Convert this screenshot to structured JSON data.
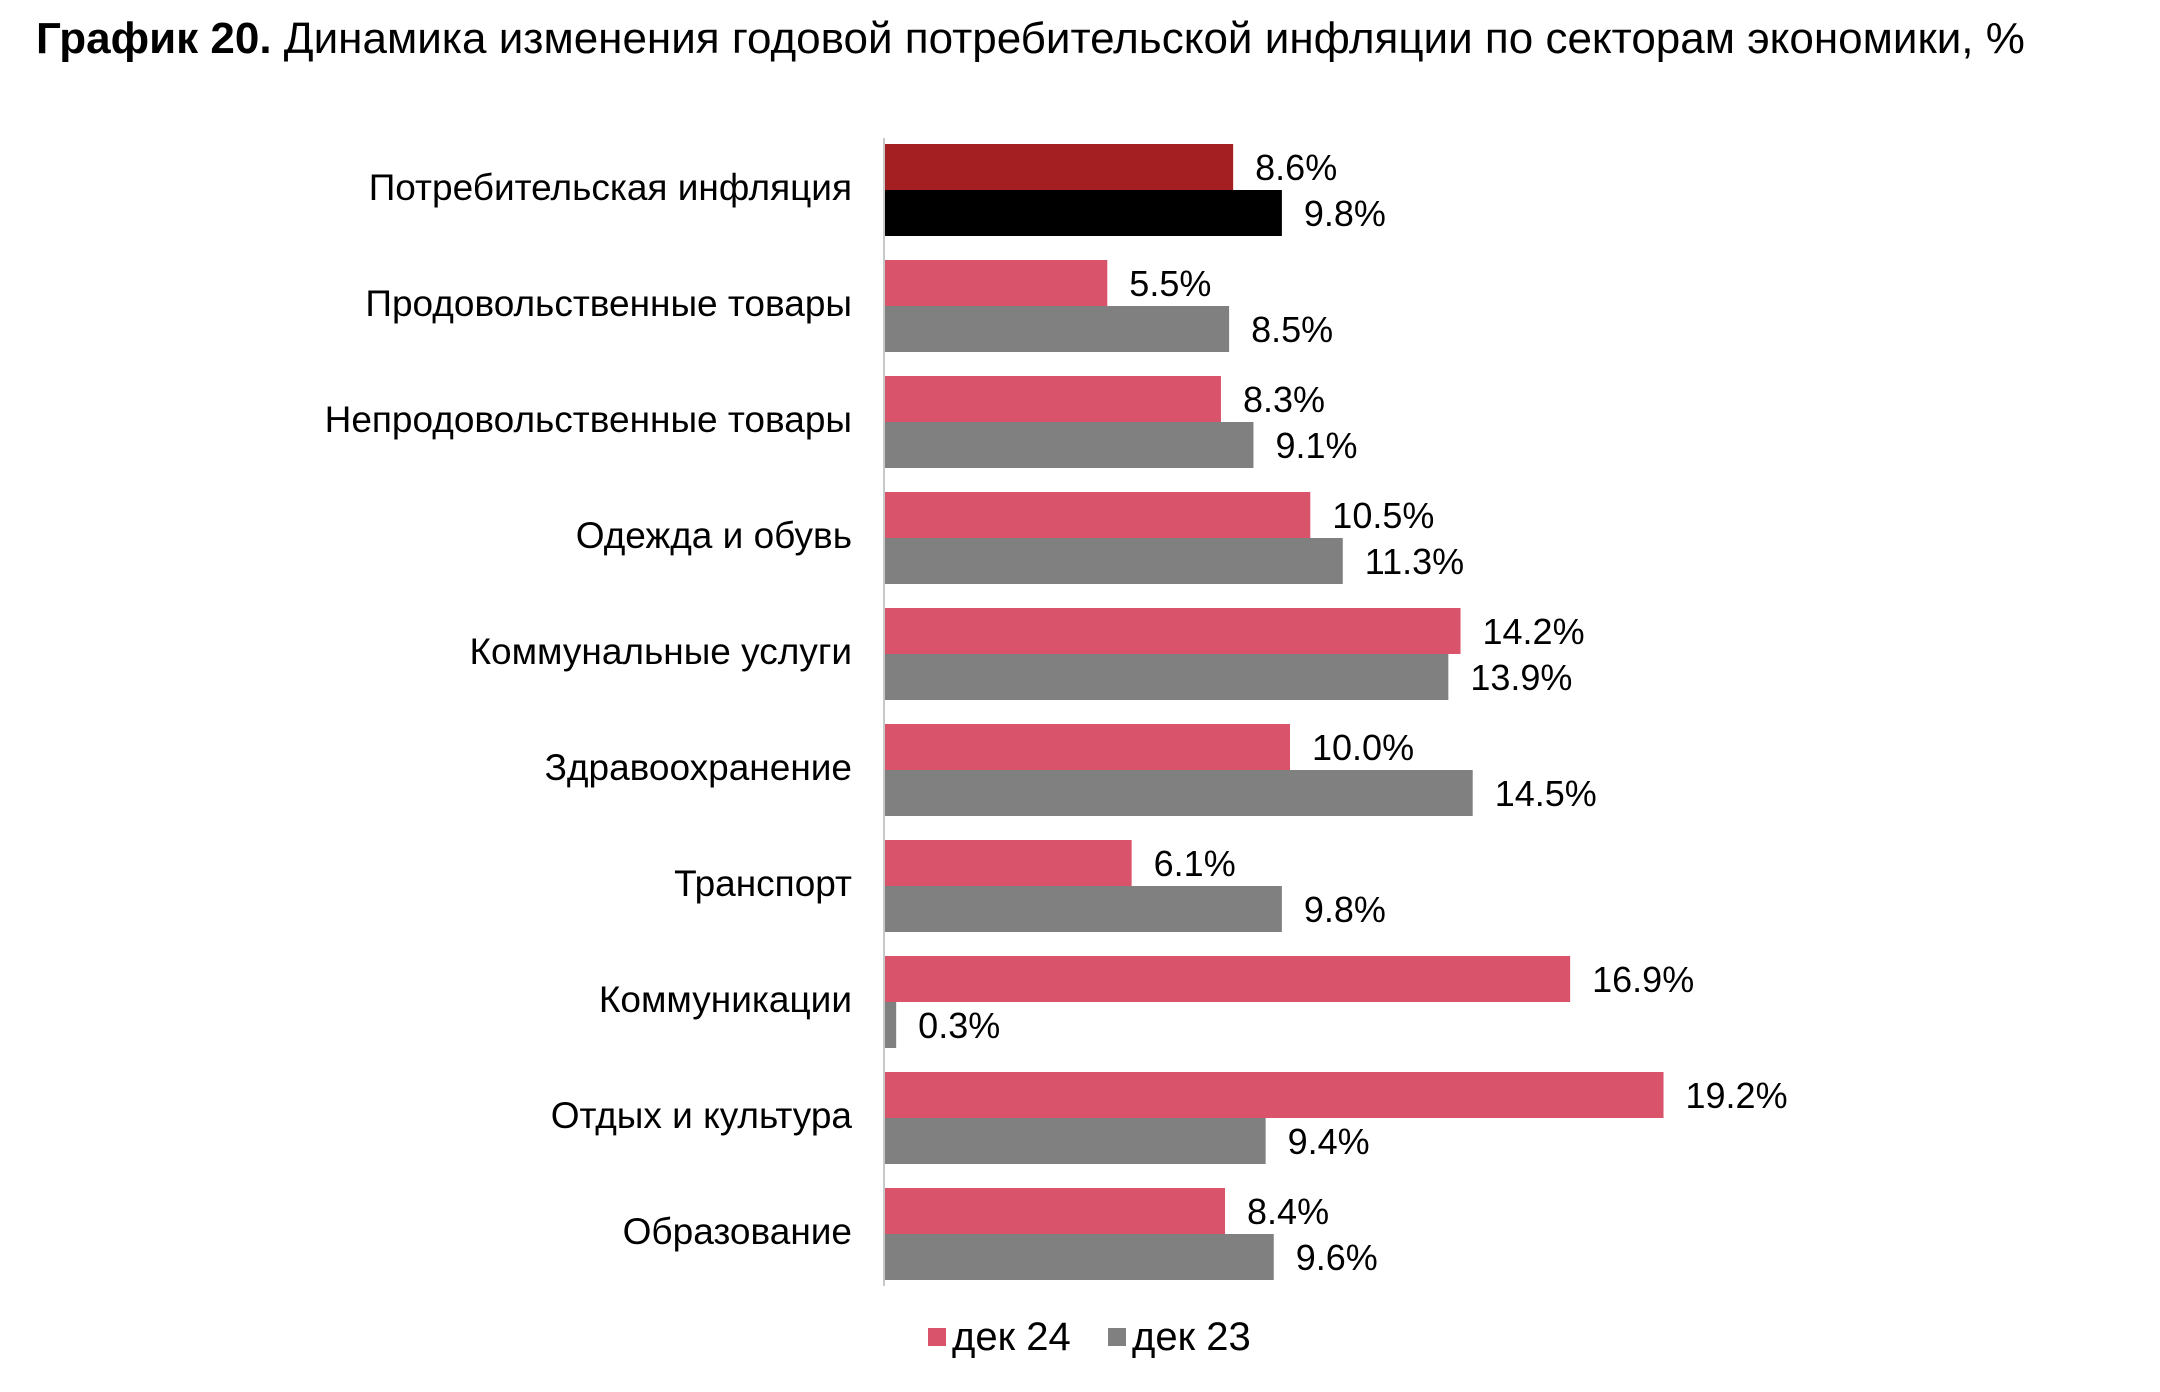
{
  "title": {
    "bold": "График 20.",
    "rest": " Динамика изменения годовой потребительской инфляции по секторам экономики, %"
  },
  "colors": {
    "dec24": "#d9546a",
    "dec23": "#808080",
    "total_dec24": "#a31f22",
    "total_dec23": "#000000",
    "axis": "#c8c8c8"
  },
  "chart_data": {
    "type": "bar",
    "orientation": "horizontal",
    "categories": [
      "Потребительская инфляция",
      "Продовольственные товары",
      "Непродовольственные товары",
      "Одежда и обувь",
      "Коммунальные услуги",
      "Здравоохранение",
      "Транспорт",
      "Коммуникации",
      "Отдых и культура",
      "Образование"
    ],
    "series": [
      {
        "name": "дек 24",
        "values": [
          8.6,
          5.5,
          8.3,
          10.5,
          14.2,
          10.0,
          6.1,
          16.9,
          19.2,
          8.4
        ],
        "labels": [
          "8.6%",
          "5.5%",
          "8.3%",
          "10.5%",
          "14.2%",
          "10.0%",
          "6.1%",
          "16.9%",
          "19.2%",
          "8.4%"
        ]
      },
      {
        "name": "дек 23",
        "values": [
          9.8,
          8.5,
          9.1,
          11.3,
          13.9,
          14.5,
          9.8,
          0.3,
          9.4,
          9.6
        ],
        "labels": [
          "9.8%",
          "8.5%",
          "9.1%",
          "11.3%",
          "13.9%",
          "14.5%",
          "9.8%",
          "0.3%",
          "9.4%",
          "9.6%"
        ]
      }
    ],
    "highlight_first_category": true,
    "legend_position": "bottom",
    "grid": false,
    "xlim": [
      0,
      20
    ]
  }
}
